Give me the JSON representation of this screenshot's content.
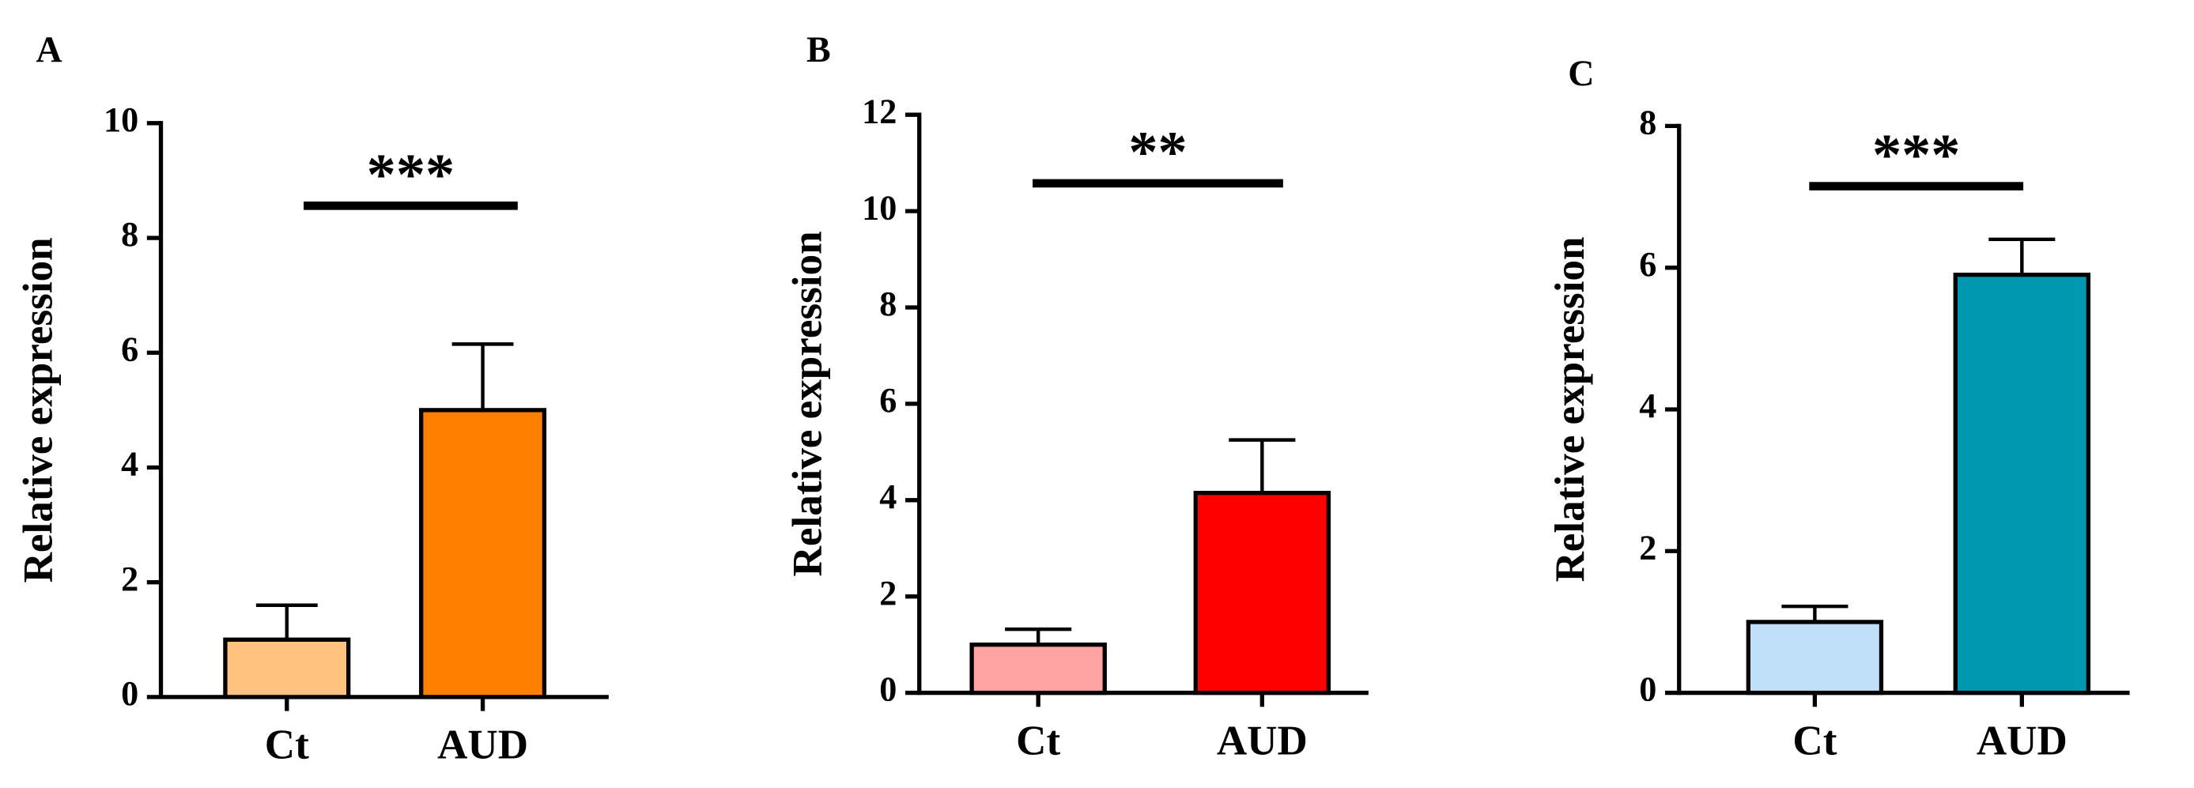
{
  "chart_data": [
    {
      "type": "bar",
      "panel": "A",
      "ylabel": "Relative expression",
      "categories": [
        "Ct",
        "AUD"
      ],
      "values": [
        1.0,
        5.0
      ],
      "errors": [
        0.6,
        1.15
      ],
      "colors": [
        "#ffc27f",
        "#ff8000"
      ],
      "ylim": [
        0,
        10
      ],
      "yticks": [
        0,
        2,
        4,
        6,
        8,
        10
      ],
      "annotation": "***"
    },
    {
      "type": "bar",
      "panel": "B",
      "ylabel": "Relative expression",
      "categories": [
        "Ct",
        "AUD"
      ],
      "values": [
        1.0,
        4.15
      ],
      "errors": [
        0.32,
        1.1
      ],
      "colors": [
        "#ffa3a3",
        "#ff0000"
      ],
      "ylim": [
        0,
        12
      ],
      "yticks": [
        0,
        2,
        4,
        6,
        8,
        10,
        12
      ],
      "annotation": "**"
    },
    {
      "type": "bar",
      "panel": "C",
      "ylabel": "Relative expression",
      "categories": [
        "Ct",
        "AUD"
      ],
      "values": [
        1.0,
        5.9
      ],
      "errors": [
        0.22,
        0.5
      ],
      "colors": [
        "#bfe0f8",
        "#0098b0"
      ],
      "ylim": [
        0,
        8
      ],
      "yticks": [
        0,
        2,
        4,
        6,
        8
      ],
      "annotation": "***"
    }
  ]
}
